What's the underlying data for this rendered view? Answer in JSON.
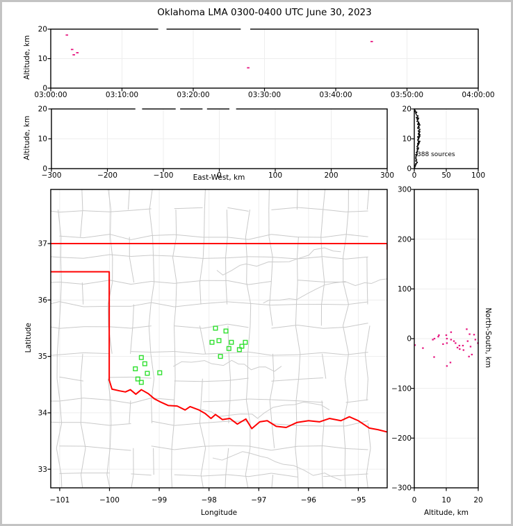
{
  "title": "Oklahoma LMA 0300-0400 UTC June 30, 2023",
  "colors": {
    "source_point": "#e6147e",
    "station_square": "#2ee02e",
    "state_border": "#ff0000",
    "county_line": "#c9c9c9",
    "river_line": "#cccccc",
    "grid_line": "#ededed",
    "frame": "#000000",
    "histogram_line": "#000000",
    "page_border": "#c3c3c3"
  },
  "chart_data": [
    {
      "id": "time_height",
      "type": "scatter",
      "xlabel": "",
      "ylabel": "Altitude, km",
      "xlim": [
        0,
        3600
      ],
      "ylim": [
        0,
        20
      ],
      "xticks": [
        0,
        600,
        1200,
        1800,
        2400,
        3000,
        3600
      ],
      "xtick_labels": [
        "03:00:00",
        "03:10:00",
        "03:20:00",
        "03:30:00",
        "03:40:00",
        "03:50:00",
        "04:00:00"
      ],
      "yticks": [
        0,
        10,
        20
      ],
      "ytick_labels": [
        "0",
        "10",
        "20"
      ],
      "grid": true,
      "point_style": "dash",
      "points_t_alt": [
        [
          136,
          18.0
        ],
        [
          180,
          13.1
        ],
        [
          194,
          11.3
        ],
        [
          224,
          12.0
        ],
        [
          1663,
          6.9
        ],
        [
          2703,
          15.8
        ]
      ],
      "white_gaps_t": [
        [
          905,
          975
        ],
        [
          1600,
          1680
        ]
      ]
    },
    {
      "id": "ew_height",
      "type": "scatter",
      "xlabel": "East-West, km",
      "ylabel": "Altitude, km",
      "xlim": [
        -300,
        300
      ],
      "ylim": [
        0,
        20
      ],
      "xticks": [
        -300,
        -200,
        -100,
        0,
        100,
        200,
        300
      ],
      "xtick_labels": [
        "−300",
        "−200",
        "−100",
        "0",
        "100",
        "200",
        "300"
      ],
      "yticks": [
        0,
        10,
        20
      ],
      "ytick_labels": [
        "0",
        "10",
        "20"
      ],
      "grid": true,
      "points_ew_alt": [],
      "white_gaps_km": [
        [
          -150,
          -138
        ],
        [
          -78,
          -70
        ],
        [
          -30,
          -22
        ],
        [
          18,
          30
        ]
      ]
    },
    {
      "id": "source_histogram",
      "type": "line",
      "annotation": "388 sources",
      "xlabel": "",
      "ylabel": "",
      "xlim": [
        0,
        100
      ],
      "ylim": [
        0,
        20
      ],
      "xticks": [
        0,
        50,
        100
      ],
      "xtick_labels": [
        "0",
        "50",
        "100"
      ],
      "yticks": [
        0,
        10,
        20
      ],
      "ytick_labels": [
        "0",
        "10",
        "20"
      ],
      "grid": true,
      "alt_step_km": 0.25,
      "counts_by_alt": [
        1,
        0,
        1,
        2,
        1,
        3,
        2,
        4,
        5,
        3,
        2,
        4,
        3,
        2,
        3,
        2,
        3,
        4,
        2,
        5,
        4,
        3,
        5,
        4,
        5,
        6,
        4,
        7,
        5,
        4,
        6,
        5,
        7,
        5,
        8,
        6,
        9,
        6,
        5,
        7,
        6,
        8,
        5,
        9,
        7,
        9,
        6,
        8,
        7,
        9,
        6,
        8,
        9,
        7,
        5,
        8,
        6,
        7,
        9,
        5,
        8,
        6,
        7,
        4,
        5,
        6,
        4,
        7,
        3,
        5,
        6,
        4,
        3,
        3,
        2,
        4,
        1,
        2,
        1,
        0
      ]
    },
    {
      "id": "map",
      "type": "scatter",
      "xlabel": "Longitude",
      "ylabel": "Latitude",
      "xlim": [
        -101.18,
        -94.42
      ],
      "ylim": [
        32.67,
        37.96
      ],
      "xticks": [
        -101,
        -100,
        -99,
        -98,
        -97,
        -96,
        -95
      ],
      "xtick_labels": [
        "−101",
        "−100",
        "−99",
        "−98",
        "−97",
        "−96",
        "−95"
      ],
      "yticks": [
        33,
        34,
        35,
        36,
        37
      ],
      "ytick_labels": [
        "33",
        "34",
        "35",
        "36",
        "37"
      ],
      "grid": true,
      "county_grid_seed": 13,
      "stations_lon_lat": [
        [
          -99.36,
          34.98
        ],
        [
          -99.29,
          34.87
        ],
        [
          -99.48,
          34.78
        ],
        [
          -99.24,
          34.7
        ],
        [
          -98.99,
          34.71
        ],
        [
          -99.43,
          34.6
        ],
        [
          -99.36,
          34.54
        ],
        [
          -97.87,
          35.5
        ],
        [
          -97.66,
          35.45
        ],
        [
          -97.94,
          35.25
        ],
        [
          -97.8,
          35.28
        ],
        [
          -97.55,
          35.25
        ],
        [
          -97.27,
          35.25
        ],
        [
          -97.34,
          35.18
        ],
        [
          -97.39,
          35.12
        ],
        [
          -97.6,
          35.14
        ],
        [
          -97.77,
          35.0
        ]
      ],
      "state_border_red": [
        [
          [
            -101.18,
            37.0
          ],
          [
            -94.42,
            37.0
          ]
        ],
        [
          [
            -94.42,
            37.0
          ],
          [
            -94.42,
            36.9
          ]
        ],
        [
          [
            -101.18,
            36.5
          ],
          [
            -100.005,
            36.5
          ],
          [
            -100.005,
            34.58
          ]
        ],
        [
          [
            -100.005,
            34.58
          ],
          [
            -99.95,
            34.42
          ],
          [
            -99.8,
            34.39
          ],
          [
            -99.68,
            34.37
          ],
          [
            -99.58,
            34.41
          ],
          [
            -99.47,
            34.33
          ],
          [
            -99.36,
            34.41
          ],
          [
            -99.22,
            34.34
          ],
          [
            -99.1,
            34.25
          ],
          [
            -98.97,
            34.19
          ],
          [
            -98.82,
            34.13
          ],
          [
            -98.64,
            34.12
          ],
          [
            -98.48,
            34.05
          ],
          [
            -98.38,
            34.11
          ],
          [
            -98.2,
            34.05
          ],
          [
            -98.08,
            33.99
          ],
          [
            -97.96,
            33.9
          ],
          [
            -97.87,
            33.97
          ],
          [
            -97.73,
            33.88
          ],
          [
            -97.58,
            33.9
          ],
          [
            -97.43,
            33.8
          ],
          [
            -97.26,
            33.89
          ],
          [
            -97.14,
            33.72
          ],
          [
            -96.98,
            33.84
          ],
          [
            -96.83,
            33.86
          ],
          [
            -96.65,
            33.76
          ],
          [
            -96.45,
            33.74
          ],
          [
            -96.23,
            33.83
          ],
          [
            -96.0,
            33.86
          ],
          [
            -95.78,
            33.84
          ],
          [
            -95.58,
            33.9
          ],
          [
            -95.35,
            33.86
          ],
          [
            -95.18,
            33.93
          ],
          [
            -95.0,
            33.86
          ],
          [
            -94.78,
            33.73
          ],
          [
            -94.6,
            33.7
          ],
          [
            -94.42,
            33.66
          ]
        ]
      ]
    },
    {
      "id": "ns_height",
      "type": "scatter",
      "xlabel": "Altitude, km",
      "ylabel_right": "North-South, km",
      "xlim": [
        0,
        20
      ],
      "ylim": [
        -300,
        300
      ],
      "xticks": [
        0,
        10,
        20
      ],
      "xtick_labels": [
        "0",
        "10",
        "20"
      ],
      "yticks": [
        -300,
        -200,
        -100,
        0,
        100,
        200,
        300
      ],
      "ytick_labels": [
        "−300",
        "−200",
        "−100",
        "0",
        "100",
        "200",
        "300"
      ],
      "grid": true,
      "points_alt_ns": [
        [
          0.2,
          -13
        ],
        [
          2.7,
          -19
        ],
        [
          5.8,
          -2
        ],
        [
          6.2,
          -37
        ],
        [
          6.3,
          0
        ],
        [
          7.5,
          4
        ],
        [
          7.7,
          7
        ],
        [
          9.0,
          -11
        ],
        [
          10.0,
          7
        ],
        [
          10.2,
          0
        ],
        [
          10.2,
          -9
        ],
        [
          10.2,
          -55
        ],
        [
          11.3,
          -48
        ],
        [
          11.5,
          -2
        ],
        [
          11.5,
          13
        ],
        [
          12.4,
          -5
        ],
        [
          12.9,
          -9
        ],
        [
          13.5,
          -18
        ],
        [
          14.1,
          -14
        ],
        [
          14.2,
          -21
        ],
        [
          15.2,
          -14
        ],
        [
          15.4,
          -23
        ],
        [
          16.4,
          19
        ],
        [
          16.7,
          -5
        ],
        [
          17.3,
          9
        ],
        [
          17.6,
          -16
        ],
        [
          17.1,
          -36
        ],
        [
          18.0,
          -32
        ],
        [
          18.7,
          8
        ],
        [
          19.1,
          -2
        ],
        [
          19.9,
          -9
        ]
      ]
    }
  ]
}
